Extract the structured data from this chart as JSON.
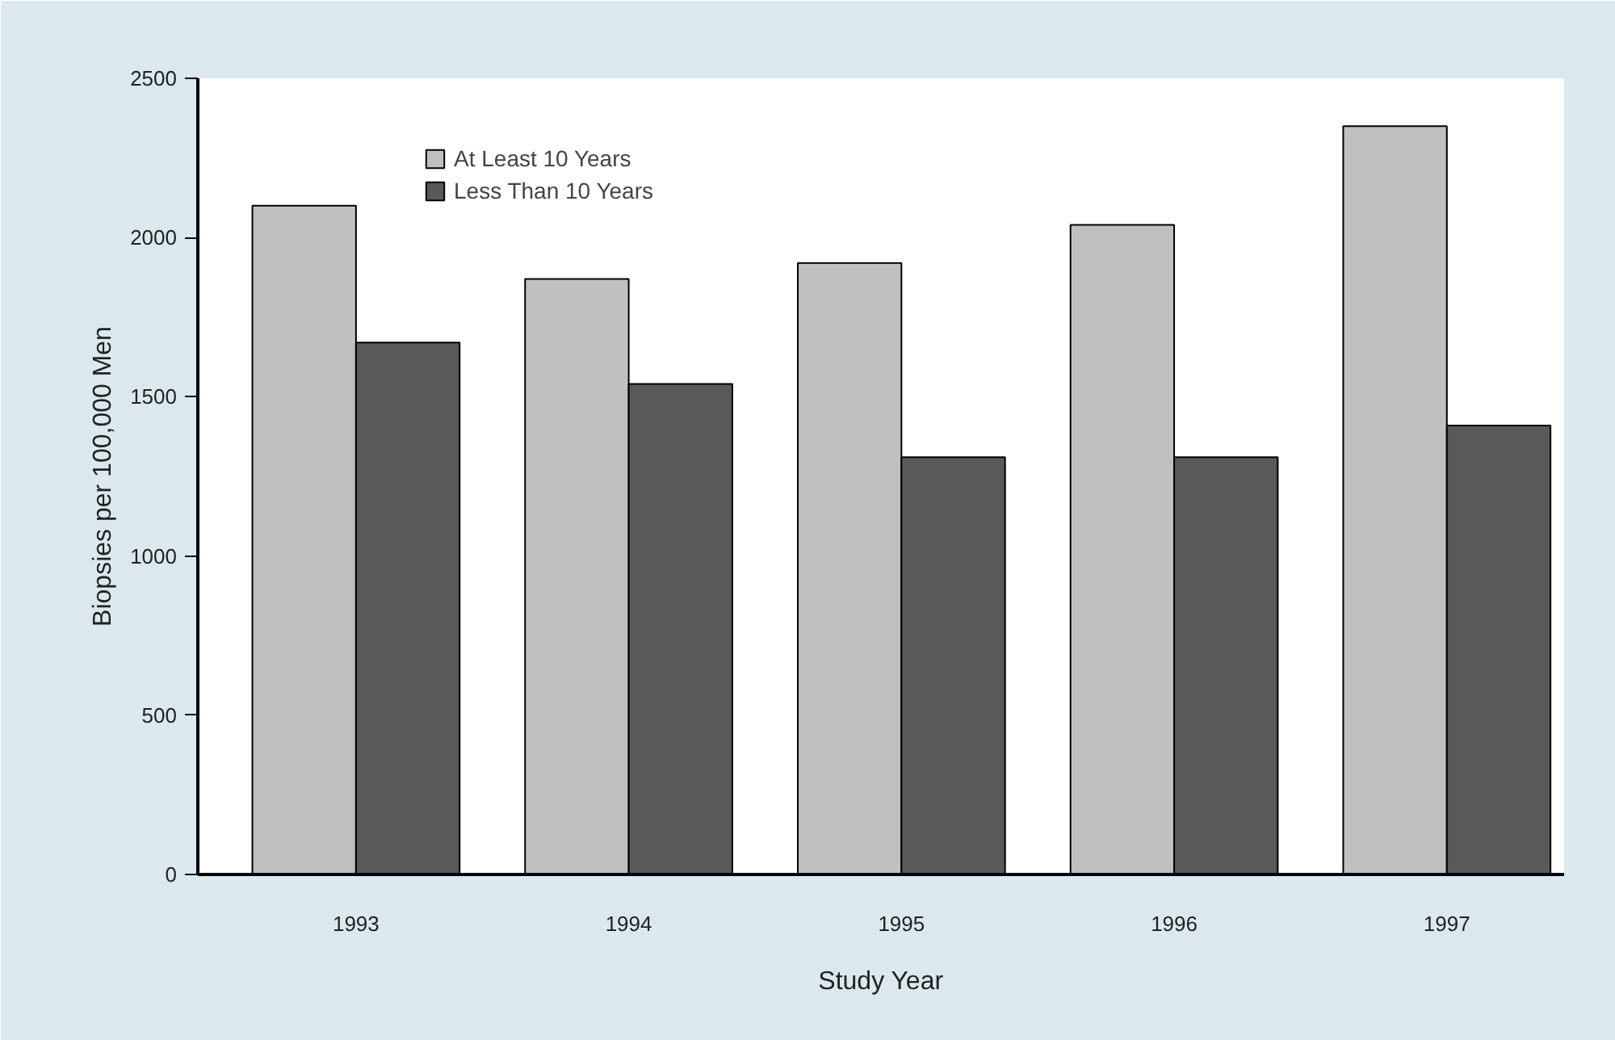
{
  "chart_data": {
    "type": "bar",
    "xlabel": "Study Year",
    "ylabel": "Biopsies per 100,000 Men",
    "categories": [
      "1993",
      "1994",
      "1995",
      "1996",
      "1997"
    ],
    "series": [
      {
        "name": "At Least 10 Years",
        "color": "#c0c0c0",
        "values": [
          2100,
          1870,
          1920,
          2040,
          2350
        ]
      },
      {
        "name": "Less Than 10 Years",
        "color": "#595959",
        "values": [
          1670,
          1540,
          1310,
          1310,
          1410
        ]
      }
    ],
    "ylim": [
      0,
      2500
    ],
    "yticks": [
      0,
      500,
      1000,
      1500,
      2000,
      2500
    ],
    "grid": false,
    "legend": "top left"
  }
}
